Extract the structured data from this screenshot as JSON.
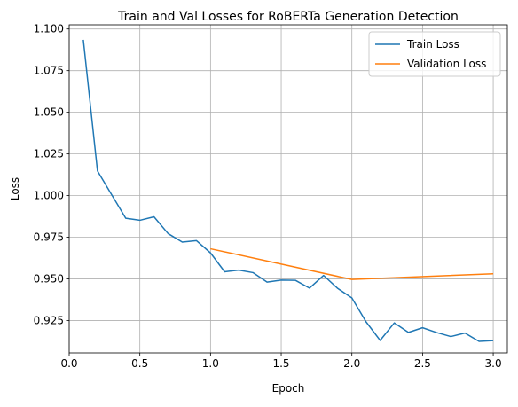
{
  "chart_data": {
    "type": "line",
    "title": "Train and Val Losses for RoBERTa Generation Detection",
    "xlabel": "Epoch",
    "ylabel": "Loss",
    "xlim": [
      -0.0,
      3.1
    ],
    "ylim": [
      0.9056,
      1.1025
    ],
    "xticks": [
      "0.0",
      "0.5",
      "1.0",
      "1.5",
      "2.0",
      "2.5",
      "3.0"
    ],
    "yticks": [
      "0.925",
      "0.950",
      "0.975",
      "1.000",
      "1.025",
      "1.050",
      "1.075",
      "1.100"
    ],
    "grid": true,
    "legend_position": "upper-right",
    "series": [
      {
        "name": "Train Loss",
        "color": "#1f77b4",
        "x": [
          0.1,
          0.2,
          0.3,
          0.4,
          0.5,
          0.6,
          0.7,
          0.8,
          0.9,
          1.0,
          1.1,
          1.2,
          1.3,
          1.4,
          1.5,
          1.6,
          1.7,
          1.8,
          1.9,
          2.0,
          2.1,
          2.2,
          2.3,
          2.4,
          2.5,
          2.6,
          2.7,
          2.8,
          2.9,
          3.0
        ],
        "y": [
          1.0935,
          1.0148,
          1.0006,
          0.9864,
          0.9852,
          0.9873,
          0.9772,
          0.9721,
          0.973,
          0.9656,
          0.9543,
          0.9553,
          0.9538,
          0.9481,
          0.9493,
          0.9492,
          0.9445,
          0.9521,
          0.9443,
          0.9386,
          0.9243,
          0.9131,
          0.9236,
          0.9179,
          0.9207,
          0.9178,
          0.9154,
          0.9175,
          0.9125,
          0.913
        ]
      },
      {
        "name": "Validation Loss",
        "color": "#ff7f0e",
        "x": [
          1.0,
          2.0,
          3.0
        ],
        "y": [
          0.9681,
          0.9497,
          0.9531
        ]
      }
    ]
  }
}
